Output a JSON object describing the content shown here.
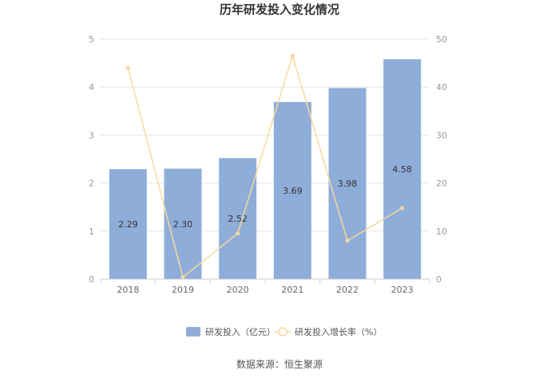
{
  "chart_data": {
    "type": "bar",
    "title": "历年研发投入变化情况",
    "categories": [
      "2018",
      "2019",
      "2020",
      "2021",
      "2022",
      "2023"
    ],
    "series": [
      {
        "name": "研发投入（亿元）",
        "type": "bar",
        "axis": "left",
        "values": [
          2.29,
          2.3,
          2.52,
          3.69,
          3.98,
          4.58
        ],
        "labels": [
          "2.29",
          "2.30",
          "2.52",
          "3.69",
          "3.98",
          "4.58"
        ],
        "color": "#8eadd9"
      },
      {
        "name": "研发投入增长率（%）",
        "type": "line",
        "axis": "right",
        "values": [
          44.0,
          0.4,
          9.5,
          46.5,
          8.0,
          14.8
        ],
        "color": "#f9d89c"
      }
    ],
    "y_left": {
      "min": 0,
      "max": 5,
      "ticks": [
        "0",
        "1",
        "2",
        "3",
        "4",
        "5"
      ]
    },
    "y_right": {
      "min": 0,
      "max": 50,
      "ticks": [
        "0",
        "10",
        "20",
        "30",
        "40",
        "50"
      ]
    },
    "grid": true,
    "legend_position": "bottom-center"
  },
  "source": "数据来源：恒生聚源"
}
